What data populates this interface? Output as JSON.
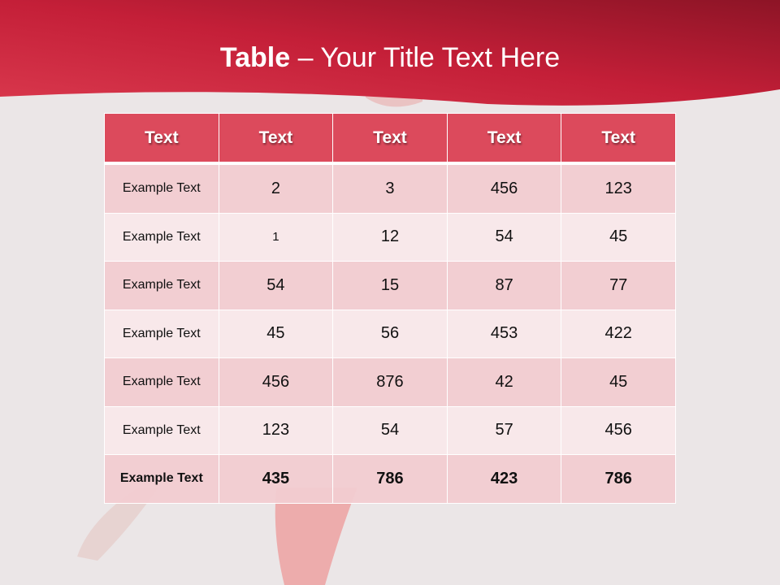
{
  "title": {
    "bold": "Table",
    "rest": " – Your Title Text Here"
  },
  "colors": {
    "header_band": "#c41f38",
    "table_header": "#dc4a5c",
    "row_odd": "#f2ced2",
    "row_even": "#f8e6e8",
    "background": "#ebe6e7"
  },
  "table": {
    "headers": [
      "Text",
      "Text",
      "Text",
      "Text",
      "Text"
    ],
    "rows": [
      [
        "Example Text",
        "2",
        "3",
        "456",
        "123"
      ],
      [
        "Example Text",
        "1",
        "12",
        "54",
        "45"
      ],
      [
        "Example Text",
        "54",
        "15",
        "87",
        "77"
      ],
      [
        "Example Text",
        "45",
        "56",
        "453",
        "422"
      ],
      [
        "Example Text",
        "456",
        "876",
        "42",
        "45"
      ],
      [
        "Example Text",
        "123",
        "54",
        "57",
        "456"
      ],
      [
        "Example Text",
        "435",
        "786",
        "423",
        "786"
      ]
    ]
  }
}
